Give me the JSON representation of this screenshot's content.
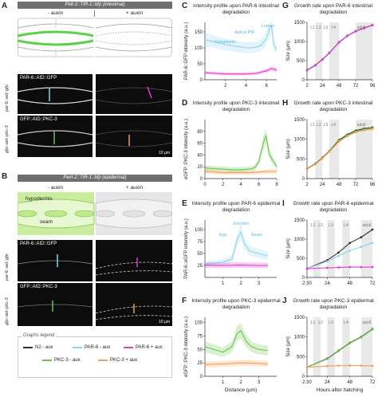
{
  "panels": {
    "A": {
      "label": "A",
      "banner": "Pelt-2::TIR-1::bfp (intestinal)",
      "minus": "- auxin",
      "plus": "+ auxin",
      "row1_text": "PAR-6::AID::GFP",
      "row2_text": "GFP::AID::PKC-3",
      "side1": "par-6::aid::gfp",
      "side2": "gfp::aid::pkc-3",
      "scalebar": "10 µm"
    },
    "B": {
      "label": "B",
      "banner": "Pwrt-2::TIR-1::bfp (epidermal)",
      "minus": "- auxin",
      "plus": "+ auxin",
      "hypodermis": "hypodermis",
      "seam": "seam",
      "row1_text": "PAR-6::AID::GFP",
      "row2_text": "GFP::AID::PKC-3",
      "side1": "par-6::aid::gfp",
      "side2": "gfp::aid::pkc-3",
      "scalebar": "10 µm"
    }
  },
  "legend": {
    "title": "Graphs legend",
    "items": [
      {
        "label": "N2 - aux",
        "color": "#333333"
      },
      {
        "label": "PAR-6 - aux",
        "color": "#8fd3ee"
      },
      {
        "label": "PAR-6 + aux",
        "color": "#e23bd0"
      },
      {
        "label": "PKC-3 - aux",
        "color": "#6cc24a"
      },
      {
        "label": "PKC-3 + aux",
        "color": "#f0a050"
      }
    ]
  },
  "colors": {
    "n2": "#333333",
    "par6_minus": "#8fd3ee",
    "par6_plus": "#e23bd0",
    "pkc3_minus": "#6cc24a",
    "pkc3_plus": "#f0a050"
  },
  "chart_data": [
    {
      "id": "C",
      "type": "line",
      "title": "Intensity profile upon PAR-6 intestinal degradation",
      "ylabel": "PAR-6::GFP intensity (a.u.)",
      "xlabel": "",
      "xlim": [
        0,
        7
      ],
      "ylim": [
        0,
        180
      ],
      "xticks": [
        2,
        4,
        6
      ],
      "yticks": [
        0,
        50,
        100,
        150
      ],
      "annotations": [
        "Lumen",
        "Apical PM",
        "Cytoplasm"
      ],
      "series": [
        {
          "key": "par6_minus",
          "x": [
            0,
            0.5,
            1,
            1.5,
            2,
            2.5,
            3,
            3.5,
            4,
            4.5,
            5,
            5.5,
            6,
            6.3,
            6.5,
            6.7,
            7
          ],
          "y": [
            125,
            122,
            118,
            115,
            110,
            108,
            105,
            103,
            100,
            100,
            102,
            108,
            130,
            160,
            170,
            110,
            95
          ]
        },
        {
          "key": "par6_plus",
          "x": [
            0,
            1,
            2,
            3,
            4,
            5,
            6,
            6.5,
            7
          ],
          "y": [
            22,
            20,
            18,
            18,
            18,
            20,
            28,
            35,
            30
          ]
        }
      ]
    },
    {
      "id": "D",
      "type": "line",
      "title": "Intensity profile upon PKC-3 intestinal degradation",
      "ylabel": "eGFP::PKC-3 intensity (a.u.)",
      "xlabel": "",
      "xlim": [
        0,
        8
      ],
      "ylim": [
        0,
        100
      ],
      "xticks": [
        0,
        2,
        4,
        6,
        8
      ],
      "yticks": [
        0,
        20,
        40,
        60,
        80
      ],
      "series": [
        {
          "key": "pkc3_minus",
          "x": [
            0,
            1,
            2,
            3,
            4,
            5,
            5.5,
            6,
            6.5,
            6.8,
            7.2,
            8
          ],
          "y": [
            18,
            17,
            16,
            15,
            15,
            16,
            18,
            28,
            60,
            72,
            40,
            20
          ]
        },
        {
          "key": "pkc3_plus",
          "x": [
            0,
            1,
            2,
            3,
            4,
            5,
            6,
            7,
            8
          ],
          "y": [
            12,
            11,
            10,
            10,
            10,
            10,
            11,
            12,
            12
          ]
        }
      ]
    },
    {
      "id": "E",
      "type": "line",
      "title": "Intensity profile upon PAR-6 epidermal degradation",
      "ylabel": "PAR-6::eGFP intensity (a.u.)",
      "xlabel": "",
      "xlim": [
        0,
        4
      ],
      "ylim": [
        0,
        120
      ],
      "xticks": [
        1,
        2,
        3
      ],
      "yticks": [
        25,
        50,
        75,
        100
      ],
      "annotations": [
        "Junction",
        "Hyp",
        "Seam"
      ],
      "series": [
        {
          "key": "par6_minus",
          "x": [
            0,
            0.5,
            1,
            1.5,
            1.8,
            2,
            2.2,
            2.5,
            3,
            3.5
          ],
          "y": [
            28,
            30,
            32,
            38,
            80,
            95,
            70,
            55,
            50,
            45
          ]
        },
        {
          "key": "par6_plus",
          "x": [
            0,
            1,
            2,
            3,
            3.5
          ],
          "y": [
            26,
            25,
            26,
            25,
            25
          ]
        }
      ]
    },
    {
      "id": "F",
      "type": "line",
      "title": "Intensity profile upon PKC-3 epidermal degradation",
      "ylabel": "eGFP::PKC-3 intensity (a.u.)",
      "xlabel": "Distance (µm)",
      "xlim": [
        0,
        4
      ],
      "ylim": [
        0,
        110
      ],
      "xticks": [
        1,
        2,
        3
      ],
      "yticks": [
        0,
        25,
        50,
        75,
        100
      ],
      "series": [
        {
          "key": "pkc3_minus",
          "x": [
            0,
            0.5,
            1,
            1.5,
            1.8,
            2,
            2.3,
            2.6,
            3,
            3.5
          ],
          "y": [
            55,
            50,
            45,
            55,
            80,
            85,
            65,
            55,
            50,
            48
          ]
        },
        {
          "key": "pkc3_plus",
          "x": [
            0,
            1,
            2,
            3,
            3.5
          ],
          "y": [
            22,
            23,
            25,
            24,
            23
          ]
        }
      ]
    },
    {
      "id": "G",
      "type": "line",
      "title": "Growth rate upon PAR-6 intestinal degradation",
      "ylabel": "Size (µm)",
      "xlabel": "",
      "xticklabels": [
        "2",
        "24",
        "48",
        "72",
        "96"
      ],
      "ylim": [
        0,
        1500
      ],
      "yticks": [
        0,
        500,
        1000,
        1500
      ],
      "stages": [
        "L1",
        "L2",
        "L3",
        "L4",
        "adult"
      ],
      "series": [
        {
          "key": "n2",
          "x": [
            2,
            14,
            24,
            34,
            48,
            60,
            72,
            84,
            96
          ],
          "y": [
            250,
            380,
            530,
            700,
            980,
            1150,
            1270,
            1350,
            1430
          ]
        },
        {
          "key": "par6_minus",
          "x": [
            2,
            14,
            24,
            34,
            48,
            60,
            72,
            84,
            96
          ],
          "y": [
            240,
            370,
            520,
            690,
            970,
            1140,
            1260,
            1340,
            1420
          ]
        },
        {
          "key": "par6_plus",
          "x": [
            2,
            14,
            24,
            34,
            48,
            60,
            72,
            84,
            96
          ],
          "y": [
            245,
            375,
            525,
            695,
            975,
            1145,
            1265,
            1345,
            1425
          ]
        }
      ]
    },
    {
      "id": "H",
      "type": "line",
      "title": "Growth rate upon PKC-3 intestinal degradation",
      "ylabel": "Size (µm)",
      "xlabel": "",
      "xticklabels": [
        "2",
        "24",
        "48",
        "72",
        "96"
      ],
      "ylim": [
        0,
        1500
      ],
      "yticks": [
        0,
        500,
        1000,
        1500
      ],
      "stages": [
        "L1",
        "L2",
        "L3",
        "L4",
        "adult"
      ],
      "series": [
        {
          "key": "n2",
          "x": [
            2,
            14,
            24,
            34,
            48,
            60,
            72,
            84,
            96
          ],
          "y": [
            250,
            380,
            530,
            700,
            980,
            1120,
            1220,
            1270,
            1300
          ]
        },
        {
          "key": "pkc3_minus",
          "x": [
            2,
            14,
            24,
            34,
            48,
            60,
            72,
            84,
            96
          ],
          "y": [
            245,
            370,
            520,
            690,
            960,
            1100,
            1200,
            1250,
            1280
          ]
        },
        {
          "key": "pkc3_plus",
          "x": [
            2,
            14,
            24,
            34,
            48,
            60,
            72,
            84,
            96
          ],
          "y": [
            240,
            365,
            510,
            680,
            940,
            1080,
            1180,
            1230,
            1260
          ]
        }
      ]
    },
    {
      "id": "I",
      "type": "line",
      "title": "Growth rate upon PAR-6 epidermal degradation",
      "ylabel": "Size (µm)",
      "xlabel": "",
      "xticklabels": [
        "2:30",
        "24",
        "48",
        "72"
      ],
      "ylim": [
        0,
        1500
      ],
      "yticks": [
        0,
        500,
        1000,
        1500
      ],
      "stages": [
        "L1",
        "L2",
        "L3",
        "L4",
        "adult"
      ],
      "series": [
        {
          "key": "n2",
          "x": [
            2.5,
            24,
            36,
            48,
            60,
            72
          ],
          "y": [
            230,
            450,
            650,
            900,
            1050,
            1250
          ]
        },
        {
          "key": "par6_minus",
          "x": [
            2.5,
            24,
            36,
            48,
            60,
            72
          ],
          "y": [
            230,
            420,
            560,
            700,
            800,
            900
          ]
        },
        {
          "key": "par6_plus",
          "x": [
            2.5,
            24,
            36,
            48,
            60,
            72
          ],
          "y": [
            230,
            250,
            260,
            270,
            270,
            270
          ]
        }
      ]
    },
    {
      "id": "J",
      "type": "line",
      "title": "Growth rate upon PKC-3 epidermal degradation",
      "ylabel": "Size (µm)",
      "xlabel": "Hours after hatching",
      "xticklabels": [
        "2:30",
        "24",
        "48",
        "72"
      ],
      "ylim": [
        0,
        1500
      ],
      "yticks": [
        0,
        500,
        1000,
        1500
      ],
      "stages": [
        "L1",
        "L2",
        "L3",
        "L4",
        "adult"
      ],
      "series": [
        {
          "key": "n2",
          "x": [
            2.5,
            24,
            36,
            48,
            60,
            72
          ],
          "y": [
            230,
            450,
            650,
            850,
            1000,
            1200
          ]
        },
        {
          "key": "pkc3_minus",
          "x": [
            2.5,
            24,
            36,
            48,
            60,
            72
          ],
          "y": [
            230,
            440,
            640,
            840,
            990,
            1190
          ]
        },
        {
          "key": "pkc3_plus",
          "x": [
            2.5,
            24,
            36,
            48,
            60,
            72
          ],
          "y": [
            230,
            260,
            270,
            275,
            270,
            265
          ]
        }
      ]
    }
  ]
}
